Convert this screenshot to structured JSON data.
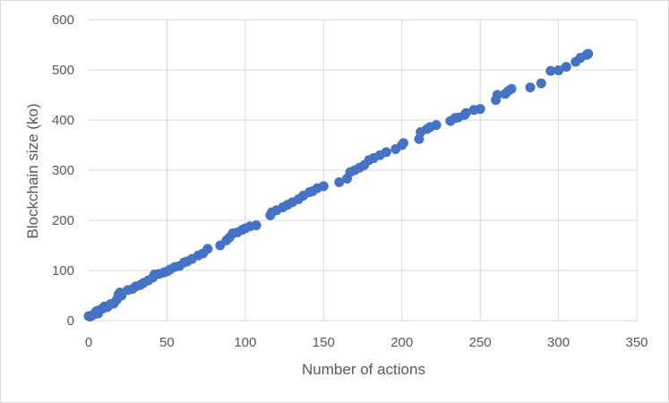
{
  "chart_data": {
    "type": "scatter",
    "title": "",
    "xlabel": "Number of actions",
    "ylabel": "Blockchain size (ko)",
    "xlim": [
      0,
      350
    ],
    "ylim": [
      0,
      600
    ],
    "x_ticks": [
      "0",
      "50",
      "100",
      "150",
      "200",
      "250",
      "300",
      "350"
    ],
    "y_ticks": [
      "0",
      "100",
      "200",
      "300",
      "400",
      "500",
      "600"
    ],
    "grid": true,
    "legend": "none",
    "marker_color": "#4472c4",
    "grid_color": "#d9d9d9",
    "series": [
      {
        "points": [
          [
            0,
            9
          ],
          [
            1,
            8
          ],
          [
            2,
            10
          ],
          [
            3,
            12
          ],
          [
            5,
            19
          ],
          [
            6,
            14
          ],
          [
            7,
            21
          ],
          [
            9,
            24
          ],
          [
            10,
            28
          ],
          [
            12,
            27
          ],
          [
            14,
            33
          ],
          [
            16,
            34
          ],
          [
            18,
            42
          ],
          [
            19,
            52
          ],
          [
            20,
            56
          ],
          [
            21,
            50
          ],
          [
            25,
            61
          ],
          [
            28,
            63
          ],
          [
            30,
            68
          ],
          [
            33,
            71
          ],
          [
            35,
            75
          ],
          [
            38,
            80
          ],
          [
            41,
            86
          ],
          [
            42,
            92
          ],
          [
            45,
            93
          ],
          [
            48,
            96
          ],
          [
            50,
            98
          ],
          [
            52,
            102
          ],
          [
            55,
            107
          ],
          [
            58,
            109
          ],
          [
            61,
            116
          ],
          [
            63,
            118
          ],
          [
            66,
            123
          ],
          [
            70,
            130
          ],
          [
            73,
            134
          ],
          [
            76,
            143
          ],
          [
            84,
            150
          ],
          [
            88,
            160
          ],
          [
            90,
            166
          ],
          [
            92,
            174
          ],
          [
            95,
            176
          ],
          [
            98,
            181
          ],
          [
            100,
            184
          ],
          [
            103,
            188
          ],
          [
            107,
            190
          ],
          [
            116,
            210
          ],
          [
            117,
            216
          ],
          [
            120,
            220
          ],
          [
            124,
            226
          ],
          [
            127,
            231
          ],
          [
            130,
            236
          ],
          [
            134,
            242
          ],
          [
            137,
            249
          ],
          [
            141,
            256
          ],
          [
            143,
            258
          ],
          [
            146,
            264
          ],
          [
            150,
            268
          ],
          [
            160,
            276
          ],
          [
            165,
            283
          ],
          [
            167,
            296
          ],
          [
            170,
            300
          ],
          [
            173,
            305
          ],
          [
            176,
            310
          ],
          [
            179,
            320
          ],
          [
            182,
            324
          ],
          [
            186,
            330
          ],
          [
            190,
            336
          ],
          [
            196,
            342
          ],
          [
            200,
            350
          ],
          [
            201,
            354
          ],
          [
            211,
            362
          ],
          [
            212,
            376
          ],
          [
            216,
            382
          ],
          [
            218,
            386
          ],
          [
            222,
            390
          ],
          [
            231,
            398
          ],
          [
            234,
            404
          ],
          [
            236,
            405
          ],
          [
            240,
            410
          ],
          [
            241,
            414
          ],
          [
            246,
            420
          ],
          [
            250,
            422
          ],
          [
            260,
            440
          ],
          [
            261,
            450
          ],
          [
            266,
            452
          ],
          [
            268,
            458
          ],
          [
            270,
            462
          ],
          [
            282,
            465
          ],
          [
            289,
            473
          ],
          [
            295,
            498
          ],
          [
            300,
            499
          ],
          [
            305,
            506
          ],
          [
            311,
            516
          ],
          [
            314,
            524
          ],
          [
            318,
            530
          ],
          [
            319,
            532
          ]
        ]
      }
    ]
  }
}
